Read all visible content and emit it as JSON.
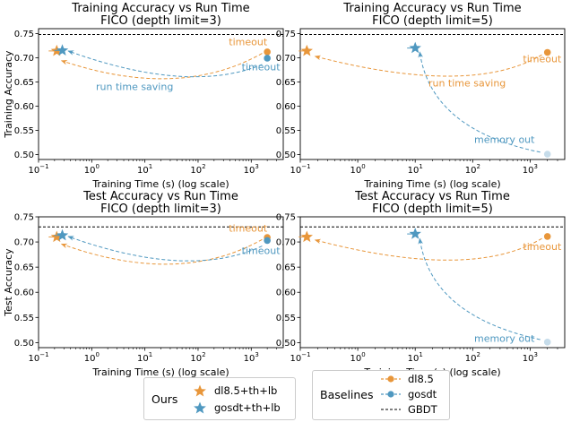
{
  "charts": [
    {
      "id": "train-d3",
      "title": [
        "Training Accuracy vs Run Time",
        "FICO (depth limit=3)"
      ],
      "ylabel": "Training Accuracy",
      "xlabel": "Training Time (s) (log scale)",
      "xlim": [
        0.1,
        4000
      ],
      "ylim": [
        0.49,
        0.76
      ],
      "xticks": [
        0.1,
        1,
        10,
        100,
        1000
      ],
      "xtick_labels": [
        "10",
        "10",
        "10",
        "10",
        "10"
      ],
      "xtick_exponents": [
        "−1",
        "0",
        "1",
        "2",
        "3"
      ],
      "yticks": [
        0.5,
        0.55,
        0.6,
        0.65,
        0.7,
        0.75
      ],
      "ytick_labels": [
        "0.50",
        "0.55",
        "0.60",
        "0.65",
        "0.70",
        "0.75"
      ],
      "gbdt": 0.748,
      "points": {
        "dl85": {
          "x": 2000,
          "y": 0.712
        },
        "gosdt": {
          "x": 2000,
          "y": 0.699
        },
        "dl85_ours": {
          "x": 0.22,
          "y": 0.714
        },
        "gosdt_ours": {
          "x": 0.28,
          "y": 0.715
        }
      },
      "arrows": [
        {
          "series": "dl85",
          "from": [
            1600,
            0.709
          ],
          "to": [
            0.27,
            0.694
          ],
          "mid": [
            30,
            0.657
          ]
        },
        {
          "series": "gosdt",
          "from": [
            1600,
            0.686
          ],
          "to": [
            0.36,
            0.714
          ],
          "mid": [
            40,
            0.662
          ]
        }
      ],
      "annotations": [
        {
          "series": "dl85",
          "text": "timeout",
          "x": 2000,
          "y": 0.726,
          "anchor": "end"
        },
        {
          "series": "gosdt",
          "text": "timeout",
          "x": 3500,
          "y": 0.674,
          "anchor": "end"
        },
        {
          "series": "gosdt",
          "text": "run time saving",
          "x": 1.2,
          "y": 0.633,
          "anchor": "start"
        }
      ]
    },
    {
      "id": "train-d5",
      "title": [
        "Training Accuracy vs Run Time",
        "FICO (depth limit=5)"
      ],
      "ylabel": "",
      "xlabel": "Training Time (s) (log scale)",
      "xlim": [
        0.1,
        4000
      ],
      "ylim": [
        0.49,
        0.76
      ],
      "xticks": [
        0.1,
        1,
        10,
        100,
        1000
      ],
      "xtick_labels": [
        "10",
        "10",
        "10",
        "10",
        "10"
      ],
      "xtick_exponents": [
        "−1",
        "0",
        "1",
        "2",
        "3"
      ],
      "yticks": [
        0.5,
        0.55,
        0.6,
        0.65,
        0.7,
        0.75
      ],
      "ytick_labels": [
        "0.50",
        "0.55",
        "0.60",
        "0.65",
        "0.70",
        "0.75"
      ],
      "gbdt": 0.748,
      "points": {
        "dl85": {
          "x": 2000,
          "y": 0.711
        },
        "gosdt": {
          "x": 2000,
          "y": 0.501
        },
        "dl85_ours": {
          "x": 0.13,
          "y": 0.714
        },
        "gosdt_ours": {
          "x": 10,
          "y": 0.72
        }
      },
      "arrows": [
        {
          "series": "dl85",
          "from": [
            1600,
            0.706
          ],
          "to": [
            0.18,
            0.703
          ],
          "mid": [
            40,
            0.662
          ]
        },
        {
          "series": "gosdt",
          "from": [
            1500,
            0.505
          ],
          "to": [
            12,
            0.712
          ],
          "mid": [
            50,
            0.58
          ]
        }
      ],
      "annotations": [
        {
          "series": "dl85",
          "text": "timeout",
          "x": 3500,
          "y": 0.691,
          "anchor": "end"
        },
        {
          "series": "dl85",
          "text": "run time saving",
          "x": 17,
          "y": 0.641,
          "anchor": "start"
        },
        {
          "series": "gosdt",
          "text": "memory out",
          "x": 1200,
          "y": 0.524,
          "anchor": "end"
        }
      ]
    },
    {
      "id": "test-d3",
      "title": [
        "Test Accuracy vs Run Time",
        "FICO (depth limit=3)"
      ],
      "ylabel": "Test Accuracy",
      "xlabel": "Training Time (s) (log scale)",
      "xlim": [
        0.1,
        4000
      ],
      "ylim": [
        0.49,
        0.75
      ],
      "xticks": [
        0.1,
        1,
        10,
        100,
        1000
      ],
      "xtick_labels": [
        "10",
        "10",
        "10",
        "10",
        "10"
      ],
      "xtick_exponents": [
        "−1",
        "0",
        "1",
        "2",
        "3"
      ],
      "yticks": [
        0.5,
        0.55,
        0.6,
        0.65,
        0.7,
        0.75
      ],
      "ytick_labels": [
        "0.50",
        "0.55",
        "0.60",
        "0.65",
        "0.70",
        "0.75"
      ],
      "gbdt": 0.73,
      "points": {
        "dl85": {
          "x": 2000,
          "y": 0.709
        },
        "gosdt": {
          "x": 2000,
          "y": 0.703
        },
        "dl85_ours": {
          "x": 0.22,
          "y": 0.71
        },
        "gosdt_ours": {
          "x": 0.28,
          "y": 0.713
        }
      },
      "arrows": [
        {
          "series": "dl85",
          "from": [
            1600,
            0.705
          ],
          "to": [
            0.27,
            0.696
          ],
          "mid": [
            30,
            0.656
          ]
        },
        {
          "series": "gosdt",
          "from": [
            1600,
            0.692
          ],
          "to": [
            0.36,
            0.711
          ],
          "mid": [
            40,
            0.663
          ]
        }
      ],
      "annotations": [
        {
          "series": "dl85",
          "text": "timeout",
          "x": 2000,
          "y": 0.721,
          "anchor": "end"
        },
        {
          "series": "gosdt",
          "text": "timeout",
          "x": 3500,
          "y": 0.676,
          "anchor": "end"
        }
      ]
    },
    {
      "id": "test-d5",
      "title": [
        "Test Accuracy vs Run Time",
        "FICO (depth limit=5)"
      ],
      "ylabel": "",
      "xlabel": "Training Time (s) (log scale)",
      "xlim": [
        0.1,
        4000
      ],
      "ylim": [
        0.49,
        0.75
      ],
      "xticks": [
        0.1,
        1,
        10,
        100,
        1000
      ],
      "xtick_labels": [
        "10",
        "10",
        "10",
        "10",
        "10"
      ],
      "xtick_exponents": [
        "−1",
        "0",
        "1",
        "2",
        "3"
      ],
      "yticks": [
        0.5,
        0.55,
        0.6,
        0.65,
        0.7,
        0.75
      ],
      "ytick_labels": [
        "0.50",
        "0.55",
        "0.60",
        "0.65",
        "0.70",
        "0.75"
      ],
      "gbdt": 0.73,
      "points": {
        "dl85": {
          "x": 2000,
          "y": 0.711
        },
        "gosdt": {
          "x": 2000,
          "y": 0.501
        },
        "dl85_ours": {
          "x": 0.13,
          "y": 0.71
        },
        "gosdt_ours": {
          "x": 10,
          "y": 0.716
        }
      },
      "arrows": [
        {
          "series": "dl85",
          "from": [
            1600,
            0.707
          ],
          "to": [
            0.18,
            0.704
          ],
          "mid": [
            40,
            0.664
          ]
        },
        {
          "series": "gosdt",
          "from": [
            1500,
            0.506
          ],
          "to": [
            12,
            0.707
          ],
          "mid": [
            50,
            0.58
          ]
        }
      ],
      "annotations": [
        {
          "series": "dl85",
          "text": "timeout",
          "x": 3500,
          "y": 0.684,
          "anchor": "end"
        },
        {
          "series": "gosdt",
          "text": "memory out",
          "x": 1200,
          "y": 0.502,
          "anchor": "end"
        }
      ]
    }
  ],
  "colors": {
    "dl85": "#e8963a",
    "gosdt": "#4f98c0",
    "dl85_faded": "#f3c99a",
    "gosdt_faded": "#c6dcea",
    "gbdt": "#000000"
  },
  "legend_ours": {
    "title": "Ours",
    "items": [
      {
        "label": "dl8.5+th+lb",
        "series": "dl85",
        "marker": "star"
      },
      {
        "label": "gosdt+th+lb",
        "series": "gosdt",
        "marker": "star"
      }
    ]
  },
  "legend_baselines": {
    "title": "Baselines",
    "items": [
      {
        "label": "dl8.5",
        "series": "dl85",
        "marker": "dot"
      },
      {
        "label": "gosdt",
        "series": "gosdt",
        "marker": "dot"
      },
      {
        "label": "GBDT",
        "series": "gbdt",
        "marker": "dash"
      }
    ]
  }
}
